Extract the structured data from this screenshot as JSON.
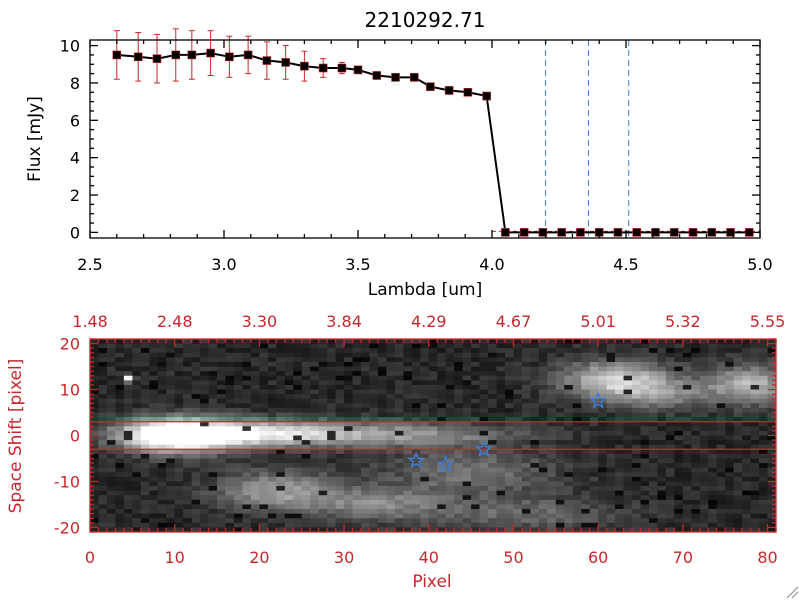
{
  "chart_data": [
    {
      "type": "line",
      "title": "2210292.71",
      "xlabel": "Lambda [um]",
      "ylabel": "Flux [mJy]",
      "xlim": [
        2.5,
        5.0
      ],
      "ylim": [
        -0.3,
        10.3
      ],
      "x_ticks": [
        "2.5",
        "3.0",
        "3.5",
        "4.0",
        "4.5",
        "5.0"
      ],
      "y_ticks": [
        "0",
        "2",
        "4",
        "6",
        "8",
        "10"
      ],
      "colors": {
        "line": "#000000",
        "marker": "#000000",
        "errorbar": "#c8282d",
        "vline": "#3a7fd5"
      },
      "series": [
        {
          "x": [
            2.6,
            2.68,
            2.75,
            2.82,
            2.88,
            2.95,
            3.02,
            3.09,
            3.16,
            3.23,
            3.3,
            3.37,
            3.44,
            3.5,
            3.57,
            3.64,
            3.71,
            3.77,
            3.84,
            3.91,
            3.98,
            4.05,
            4.12,
            4.19,
            4.26,
            4.33,
            4.4,
            4.47,
            4.54,
            4.61,
            4.68,
            4.75,
            4.82,
            4.89,
            4.96
          ],
          "y": [
            9.5,
            9.4,
            9.3,
            9.5,
            9.5,
            9.6,
            9.4,
            9.5,
            9.2,
            9.1,
            8.9,
            8.8,
            8.8,
            8.7,
            8.4,
            8.3,
            8.3,
            7.8,
            7.6,
            7.5,
            7.3,
            0.0,
            0.0,
            0.0,
            0.0,
            0.0,
            0.0,
            0.0,
            0.0,
            0.0,
            0.0,
            0.0,
            0.0,
            0.0,
            0.0
          ],
          "yerr": [
            1.3,
            1.3,
            1.3,
            1.4,
            1.3,
            1.2,
            1.1,
            1.0,
            1.0,
            0.9,
            0.8,
            0.5,
            0.3,
            0.2,
            0.2,
            0.2,
            0.2,
            0.2,
            0.2,
            0.2,
            0.2,
            0.05,
            0.05,
            0.05,
            0.05,
            0.05,
            0.05,
            0.05,
            0.05,
            0.05,
            0.05,
            0.05,
            0.05,
            0.05,
            0.05
          ]
        }
      ],
      "vertical_lines_x": [
        4.2,
        4.36,
        4.51
      ],
      "grid": false
    },
    {
      "type": "heatmap",
      "xlabel": "Pixel",
      "ylabel": "Space Shift [pixel]",
      "xlim": [
        0,
        81
      ],
      "ylim": [
        -21,
        21
      ],
      "x_ticks": [
        "0",
        "10",
        "20",
        "30",
        "40",
        "50",
        "60",
        "70",
        "80"
      ],
      "y_ticks": [
        "-20",
        "-10",
        "0",
        "10",
        "20"
      ],
      "top_ticks": [
        "1.48",
        "2.48",
        "3.30",
        "3.84",
        "4.29",
        "4.67",
        "5.01",
        "5.32",
        "5.55"
      ],
      "colormap": "grayscale",
      "colors": {
        "axis": "#c8282d",
        "star": "#3a7fd5",
        "hline": "#c8282d"
      },
      "horizontal_lines_y": [
        3,
        -3
      ],
      "blobs": [
        {
          "x": 10,
          "y": 0,
          "sx": 4.5,
          "sy": 2.6,
          "amp": 1.0
        },
        {
          "x": 18,
          "y": 0.4,
          "sx": 8,
          "sy": 2.0,
          "amp": 0.55
        },
        {
          "x": 28,
          "y": 0.3,
          "sx": 10,
          "sy": 2.0,
          "amp": 0.35
        },
        {
          "x": 42,
          "y": 0.0,
          "sx": 8,
          "sy": 1.8,
          "amp": 0.22
        },
        {
          "x": 22,
          "y": -12,
          "sx": 5,
          "sy": 3,
          "amp": 0.45
        },
        {
          "x": 34,
          "y": -15,
          "sx": 6,
          "sy": 2.5,
          "amp": 0.35
        },
        {
          "x": 45,
          "y": -8,
          "sx": 7,
          "sy": 3.5,
          "amp": 0.3
        },
        {
          "x": 62,
          "y": 12,
          "sx": 4.5,
          "sy": 3,
          "amp": 0.65
        },
        {
          "x": 78,
          "y": 11,
          "sx": 3.5,
          "sy": 3,
          "amp": 0.55
        },
        {
          "x": 68,
          "y": 9,
          "sx": 4,
          "sy": 2.5,
          "amp": 0.3
        },
        {
          "x": 52,
          "y": -17,
          "sx": 8,
          "sy": 2.5,
          "amp": 0.25
        },
        {
          "x": 4.5,
          "y": 12.3,
          "sx": 0.4,
          "sy": 0.5,
          "amp": 1.0
        }
      ],
      "stars": [
        {
          "x": 38.5,
          "y": -5.5
        },
        {
          "x": 42,
          "y": -6.3
        },
        {
          "x": 46.5,
          "y": -3.0
        },
        {
          "x": 60,
          "y": 7.5
        }
      ],
      "grid": false
    }
  ]
}
